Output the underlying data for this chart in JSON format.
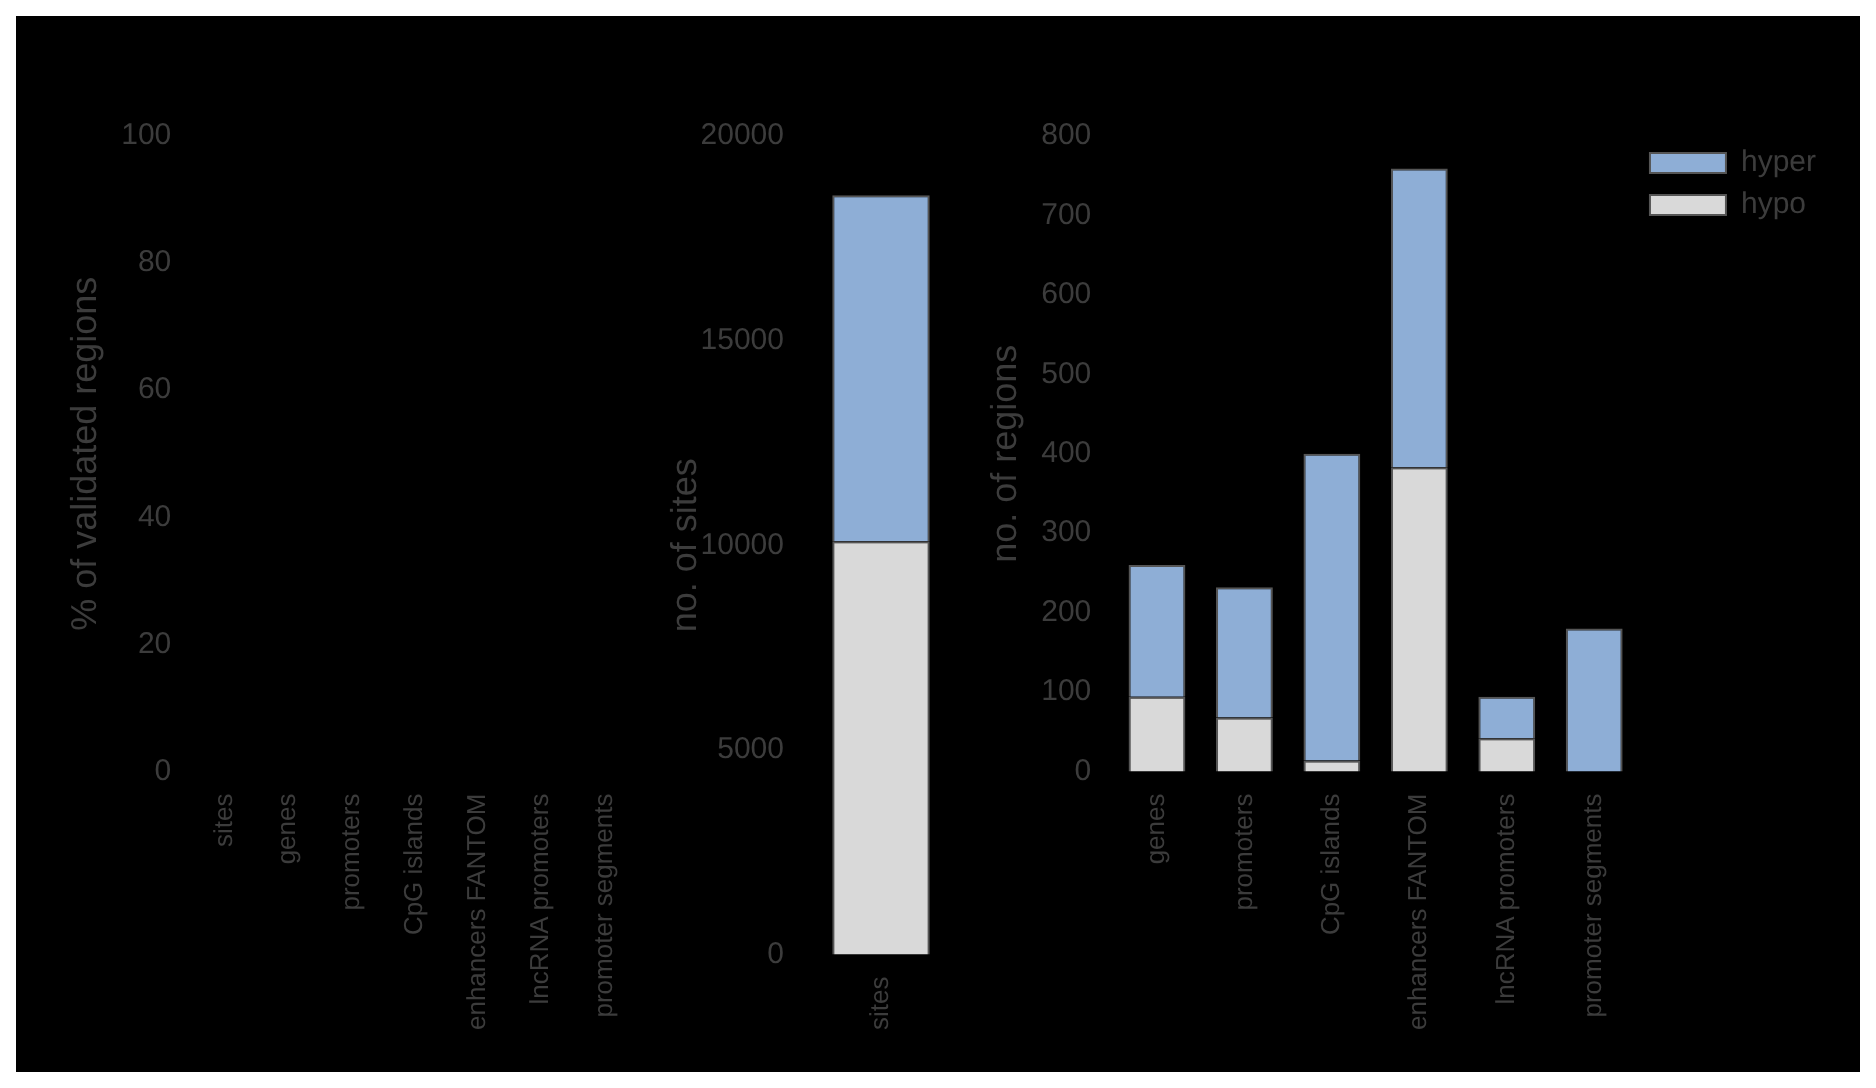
{
  "chart_data": [
    {
      "type": "bar",
      "ylabel": "% of validated regions",
      "categories": [
        "sites",
        "genes",
        "promoters",
        "CpG islands",
        "enhancers FANTOM",
        "lncRNA promoters",
        "promoter segments"
      ],
      "values": [
        null,
        null,
        null,
        null,
        null,
        null,
        null
      ],
      "ylim": [
        0,
        100
      ],
      "yticks": [
        0,
        20,
        40,
        60,
        80,
        100
      ]
    },
    {
      "type": "bar",
      "stacked": true,
      "ylabel": "no. of sites",
      "categories": [
        "sites"
      ],
      "series": [
        {
          "color": "#d9d9d9",
          "values": [
            10100
          ]
        },
        {
          "color": "#8eaed6",
          "values": [
            8450
          ]
        }
      ],
      "ylim": [
        0,
        20000
      ],
      "yticks": [
        0,
        5000,
        10000,
        15000,
        20000
      ]
    },
    {
      "type": "bar",
      "stacked": true,
      "ylabel": "no. of regions",
      "legend": "top right",
      "categories": [
        "genes",
        "promoters",
        "CpG islands",
        "enhancers FANTOM",
        "lncRNA promoters",
        "promoter segments"
      ],
      "series": [
        {
          "name": "hypo",
          "color": "#d9d9d9",
          "values": [
            94,
            68,
            14,
            383,
            42,
            0
          ]
        },
        {
          "name": "hyper",
          "color": "#8eaed6",
          "values": [
            166,
            164,
            386,
            376,
            52,
            180
          ]
        }
      ],
      "ylim": [
        0,
        800
      ],
      "yticks": [
        0,
        100,
        200,
        300,
        400,
        500,
        600,
        700,
        800
      ]
    }
  ]
}
